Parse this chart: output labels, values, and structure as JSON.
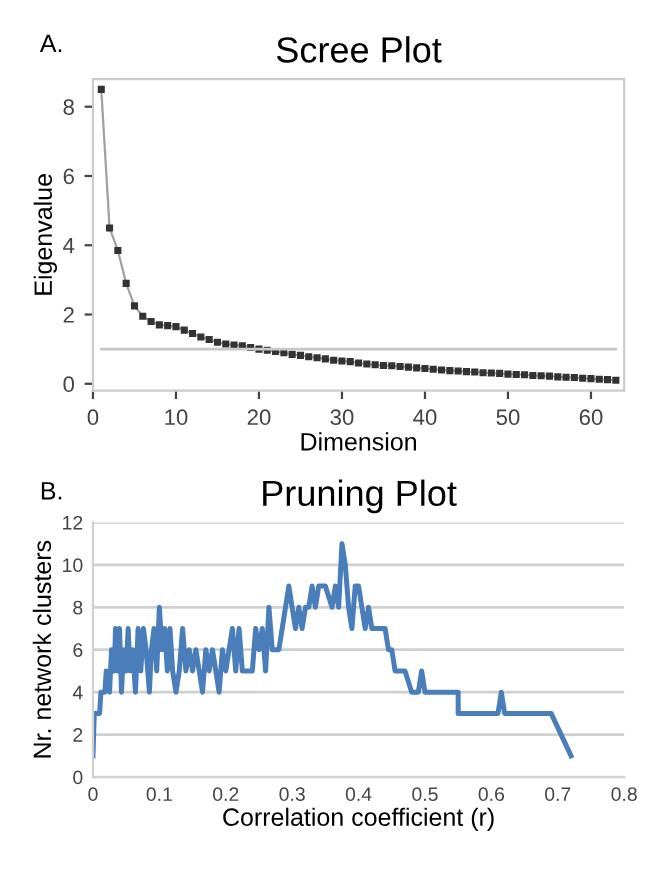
{
  "chart_data": [
    {
      "type": "line",
      "title": "Scree Plot",
      "xlabel": "Dimension",
      "ylabel": "Eigenvalue",
      "annotations": [
        "A."
      ],
      "x": [
        1,
        2,
        3,
        4,
        5,
        6,
        7,
        8,
        9,
        10,
        11,
        12,
        13,
        14,
        15,
        16,
        17,
        18,
        19,
        20,
        21,
        22,
        23,
        24,
        25,
        26,
        27,
        28,
        29,
        30,
        31,
        32,
        33,
        34,
        35,
        36,
        37,
        38,
        39,
        40,
        41,
        42,
        43,
        44,
        45,
        46,
        47,
        48,
        49,
        50,
        51,
        52,
        53,
        54,
        55,
        56,
        57,
        58,
        59,
        60,
        61,
        62,
        63
      ],
      "series": [
        {
          "color": "#a0a0a0",
          "values": [
            8.5,
            4.5,
            3.85,
            2.9,
            2.25,
            1.95,
            1.8,
            1.7,
            1.68,
            1.65,
            1.55,
            1.45,
            1.35,
            1.28,
            1.2,
            1.15,
            1.12,
            1.1,
            1.05,
            1.0,
            0.97,
            0.93,
            0.9,
            0.85,
            0.82,
            0.78,
            0.75,
            0.72,
            0.68,
            0.66,
            0.64,
            0.6,
            0.57,
            0.55,
            0.53,
            0.52,
            0.5,
            0.48,
            0.46,
            0.44,
            0.42,
            0.4,
            0.38,
            0.37,
            0.35,
            0.34,
            0.32,
            0.31,
            0.3,
            0.28,
            0.27,
            0.26,
            0.24,
            0.23,
            0.22,
            0.2,
            0.19,
            0.18,
            0.16,
            0.15,
            0.13,
            0.12,
            0.1
          ]
        }
      ],
      "marker": "square",
      "ref_lines": [
        {
          "axis": "y",
          "value": 1,
          "color": "#c8c8c8"
        }
      ],
      "xlim": [
        0,
        64
      ],
      "xticks": [
        0,
        10,
        20,
        30,
        40,
        50,
        60
      ],
      "ylim": [
        -0.2,
        8.8
      ],
      "yticks": [
        0,
        2,
        4,
        6,
        8
      ],
      "grid": false
    },
    {
      "type": "line",
      "title": "Pruning Plot",
      "xlabel": "Correlation coefficient (r)",
      "ylabel": "Nr. network clusters",
      "annotations": [
        "B."
      ],
      "x": [
        0,
        0.002,
        0.01,
        0.012,
        0.018,
        0.02,
        0.025,
        0.028,
        0.032,
        0.034,
        0.037,
        0.04,
        0.043,
        0.046,
        0.05,
        0.053,
        0.056,
        0.06,
        0.064,
        0.068,
        0.072,
        0.076,
        0.08,
        0.085,
        0.088,
        0.092,
        0.096,
        0.1,
        0.104,
        0.108,
        0.112,
        0.116,
        0.12,
        0.125,
        0.13,
        0.135,
        0.14,
        0.145,
        0.15,
        0.155,
        0.16,
        0.165,
        0.17,
        0.175,
        0.18,
        0.185,
        0.19,
        0.195,
        0.2,
        0.205,
        0.21,
        0.215,
        0.22,
        0.225,
        0.23,
        0.24,
        0.245,
        0.25,
        0.255,
        0.26,
        0.265,
        0.27,
        0.28,
        0.285,
        0.29,
        0.295,
        0.3,
        0.305,
        0.31,
        0.315,
        0.32,
        0.325,
        0.33,
        0.335,
        0.34,
        0.35,
        0.36,
        0.365,
        0.37,
        0.375,
        0.38,
        0.385,
        0.39,
        0.395,
        0.4,
        0.405,
        0.41,
        0.415,
        0.42,
        0.44,
        0.445,
        0.45,
        0.455,
        0.47,
        0.48,
        0.49,
        0.495,
        0.5,
        0.55,
        0.55,
        0.61,
        0.615,
        0.62,
        0.69,
        0.72
      ],
      "series": [
        {
          "color": "#4a7ebb",
          "values": [
            1,
            3,
            3,
            4,
            4,
            5,
            4,
            6,
            5,
            7,
            5,
            7,
            4,
            6,
            5,
            7,
            5,
            6,
            4,
            7,
            5,
            7,
            6,
            4,
            6,
            7,
            5,
            8,
            6,
            7,
            5,
            7,
            5,
            4,
            5,
            7,
            5,
            6,
            5,
            6,
            5,
            4,
            6,
            5,
            6,
            5,
            4,
            6,
            5,
            6,
            7,
            5,
            7,
            5,
            5,
            5,
            7,
            6,
            7,
            5,
            8,
            6,
            6,
            7,
            8,
            9,
            8,
            7,
            8,
            7,
            8,
            8,
            9,
            8,
            9,
            9,
            8,
            9,
            8,
            11,
            10,
            8,
            7,
            9,
            9,
            8,
            7,
            8,
            7,
            7,
            6,
            6,
            5,
            5,
            4,
            4,
            5,
            4,
            4,
            3,
            3,
            4,
            3,
            3,
            1
          ]
        }
      ],
      "marker": "none",
      "xlim": [
        0,
        0.8
      ],
      "xticks": [
        0,
        0.1,
        0.2,
        0.3,
        0.4,
        0.5,
        0.6,
        0.7,
        0.8
      ],
      "ylim": [
        0,
        12
      ],
      "yticks": [
        0,
        2,
        4,
        6,
        8,
        10,
        12
      ],
      "grid": "y"
    }
  ]
}
